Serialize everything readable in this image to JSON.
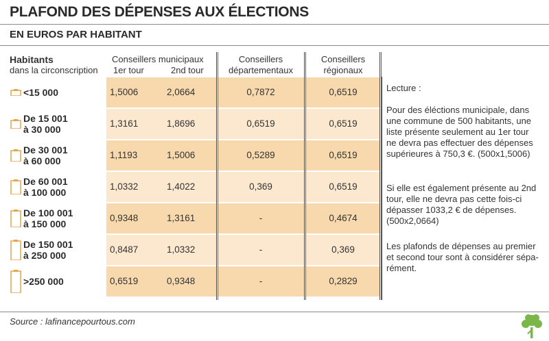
{
  "header": {
    "title": "PLAFOND DES DÉPENSES AUX ÉLECTIONS",
    "subtitle": "EN EUROS PAR HABITANT"
  },
  "columns": {
    "habitants_l1": "Habitants",
    "habitants_l2": "dans la circonscription",
    "municipaux": "Conseillers municipaux",
    "tour1": "1er tour",
    "tour2": "2nd tour",
    "departementaux_l1": "Conseillers",
    "departementaux_l2": "départementaux",
    "regionaux_l1": "Conseillers",
    "regionaux_l2": "régionaux"
  },
  "chart_data": {
    "type": "table",
    "title": "PLAFOND DES DÉPENSES AUX ÉLECTIONS",
    "subtitle": "EN EUROS PAR HABITANT",
    "columns": [
      "Conseillers municipaux 1er tour",
      "Conseillers municipaux 2nd tour",
      "Conseillers départementaux",
      "Conseillers régionaux"
    ],
    "rows": [
      {
        "l1": "<15 000",
        "l2": "",
        "values": [
          "1,5006",
          "2,0664",
          "0,7872",
          "0,6519"
        ]
      },
      {
        "l1": "De 15 001",
        "l2": "à 30 000",
        "values": [
          "1,3161",
          "1,8696",
          "0,6519",
          "0,6519"
        ]
      },
      {
        "l1": "De 30 001",
        "l2": "à 60 000",
        "values": [
          "1,1193",
          "1,5006",
          "0,5289",
          "0,6519"
        ]
      },
      {
        "l1": "De 60 001",
        "l2": "à 100 000",
        "values": [
          "1,0332",
          "1,4022",
          "0,369",
          "0,6519"
        ]
      },
      {
        "l1": "De 100 001",
        "l2": "à 150 000",
        "values": [
          "0,9348",
          "1,3161",
          "-",
          "0,4674"
        ]
      },
      {
        "l1": "De 150 001",
        "l2": "à 250 000",
        "values": [
          "0,8487",
          "1,0332",
          "-",
          "0,369"
        ]
      },
      {
        "l1": ">250 000",
        "l2": "",
        "values": [
          "0,6519",
          "0,9348",
          "-",
          "0,2829"
        ]
      }
    ]
  },
  "notes": {
    "p1": "Lecture :",
    "p2": "Pour des éléctions municipale, dans une commune de 500 habitants, une liste présente seulement au 1er tour ne devra pas effectuer des dépenses supérieures à 750,3 €. (500x1,5006)",
    "p3": "Si elle est également présente au 2nd tour, elle ne devra pas cette fois-ci dépasser 1033,2 € de dépenses. (500x2,0664)",
    "p4": "Les plafonds de dépenses au premier et second tour sont à considérer sépa-rément."
  },
  "footer": {
    "source": "Source : lafinancepourtous.com"
  },
  "colors": {
    "row_dark": "#f7d9ad",
    "row_light": "#fbe8cf",
    "icon": "#e9a44a",
    "separator_blue": "#2c4a9a",
    "separator_red": "#c43a3a",
    "logo_green": "#7ab648"
  }
}
